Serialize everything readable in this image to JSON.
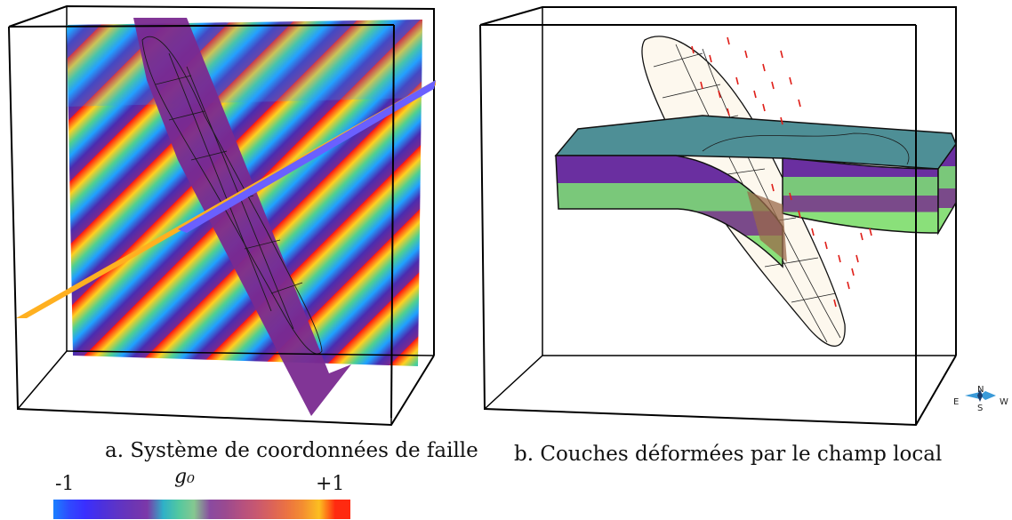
{
  "figure_a": {
    "caption": "a. Système de coordonnées de faille",
    "colorbar": {
      "title": "g₀",
      "min_label": "-1",
      "max_label": "+1",
      "colors": [
        "#1a80ff",
        "#2f4aff",
        "#3a2fff",
        "#4a30e0",
        "#5c34c8",
        "#6b35b5",
        "#7c38a8",
        "#2eb0c8",
        "#52c8a0",
        "#86c890",
        "#8a4aa0",
        "#9a4a90",
        "#b45080",
        "#c85870",
        "#dc6458",
        "#ec7440",
        "#f49030",
        "#fcc020",
        "#ff2a10"
      ]
    }
  },
  "figure_b": {
    "caption": "b. Couches déformées par le champ local",
    "layer_colors": [
      "#6a2fa0",
      "#7ac87a",
      "#7a4a8a",
      "#8ae07a"
    ],
    "compass": {
      "n": "N",
      "s": "S",
      "e": "E",
      "w": "W"
    }
  }
}
